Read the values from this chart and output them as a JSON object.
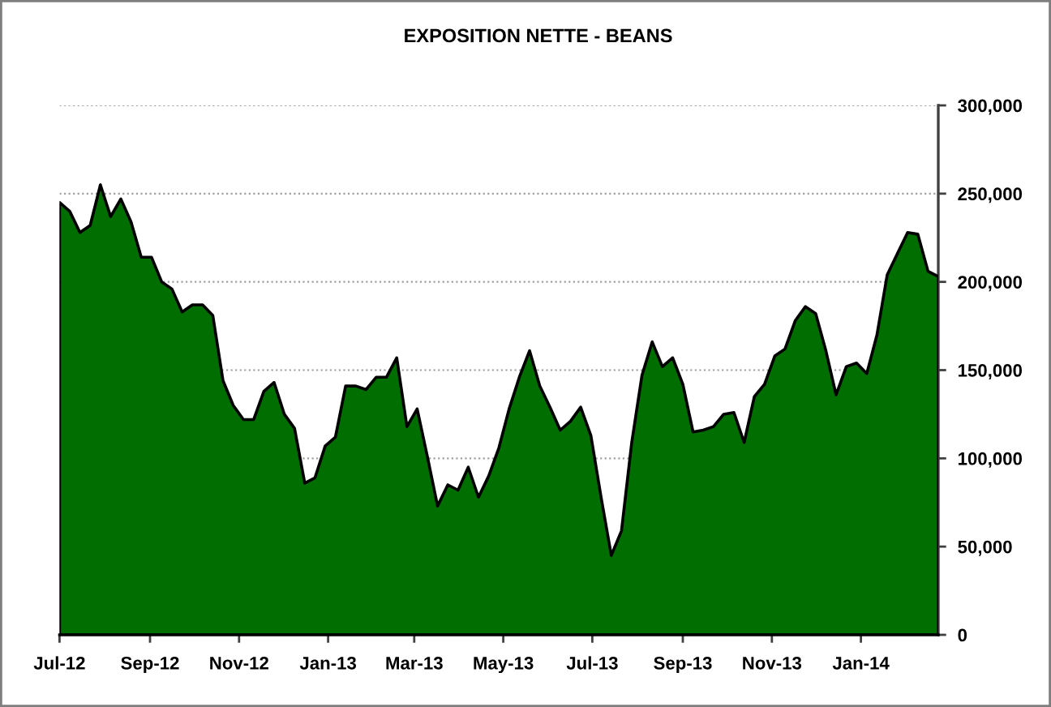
{
  "chart_data": {
    "type": "area",
    "title": "EXPOSITION NETTE - BEANS",
    "x": [
      "2012-07-03",
      "2012-07-10",
      "2012-07-17",
      "2012-07-24",
      "2012-07-31",
      "2012-08-07",
      "2012-08-14",
      "2012-08-21",
      "2012-08-28",
      "2012-09-04",
      "2012-09-11",
      "2012-09-18",
      "2012-09-25",
      "2012-10-02",
      "2012-10-09",
      "2012-10-16",
      "2012-10-23",
      "2012-10-30",
      "2012-11-06",
      "2012-11-13",
      "2012-11-20",
      "2012-11-27",
      "2012-12-04",
      "2012-12-11",
      "2012-12-18",
      "2012-12-25",
      "2013-01-01",
      "2013-01-08",
      "2013-01-15",
      "2013-01-22",
      "2013-01-29",
      "2013-02-05",
      "2013-02-12",
      "2013-02-19",
      "2013-02-26",
      "2013-03-05",
      "2013-03-12",
      "2013-03-19",
      "2013-03-26",
      "2013-04-02",
      "2013-04-09",
      "2013-04-16",
      "2013-04-23",
      "2013-04-30",
      "2013-05-07",
      "2013-05-14",
      "2013-05-21",
      "2013-05-28",
      "2013-06-04",
      "2013-06-11",
      "2013-06-18",
      "2013-06-25",
      "2013-07-02",
      "2013-07-09",
      "2013-07-16",
      "2013-07-23",
      "2013-07-30",
      "2013-08-06",
      "2013-08-13",
      "2013-08-20",
      "2013-08-27",
      "2013-09-03",
      "2013-09-10",
      "2013-09-17",
      "2013-09-24",
      "2013-10-01",
      "2013-10-08",
      "2013-10-15",
      "2013-10-22",
      "2013-10-29",
      "2013-11-05",
      "2013-11-12",
      "2013-11-19",
      "2013-11-26",
      "2013-12-03",
      "2013-12-10",
      "2013-12-17",
      "2013-12-24",
      "2013-12-31",
      "2014-01-07",
      "2014-01-14",
      "2014-01-21",
      "2014-01-28",
      "2014-02-04",
      "2014-02-11",
      "2014-02-18",
      "2014-02-25"
    ],
    "series": [
      {
        "color": "#006e00",
        "values": [
          245000,
          240000,
          228000,
          232000,
          255000,
          237000,
          247000,
          234000,
          214000,
          214000,
          200000,
          196000,
          183000,
          187000,
          187000,
          181000,
          144000,
          130000,
          122000,
          122000,
          138000,
          143000,
          125000,
          117000,
          86000,
          89000,
          107000,
          112000,
          141000,
          141000,
          139000,
          146000,
          146000,
          157000,
          118000,
          128000,
          101000,
          73000,
          85000,
          82000,
          95000,
          78000,
          90000,
          106000,
          128000,
          146000,
          161000,
          141000,
          129000,
          116000,
          121000,
          129000,
          113000,
          78000,
          45000,
          59000,
          109000,
          147000,
          166000,
          152000,
          157000,
          142000,
          115000,
          116000,
          118000,
          125000,
          126000,
          109000,
          135000,
          142000,
          158000,
          162000,
          178000,
          186000,
          182000,
          161000,
          136000,
          152000,
          154000,
          148000,
          170000,
          204000,
          216000,
          228000,
          227000,
          206000,
          203000
        ]
      }
    ],
    "xlim": [
      "2012-07-03",
      "2014-02-25"
    ],
    "xticks": [
      {
        "value": "2012-07-03",
        "label": "Jul-12"
      },
      {
        "value": "2012-09-03",
        "label": "Sep-12"
      },
      {
        "value": "2012-11-03",
        "label": "Nov-12"
      },
      {
        "value": "2013-01-03",
        "label": "Jan-13"
      },
      {
        "value": "2013-03-03",
        "label": "Mar-13"
      },
      {
        "value": "2013-05-03",
        "label": "May-13"
      },
      {
        "value": "2013-07-03",
        "label": "Jul-13"
      },
      {
        "value": "2013-09-03",
        "label": "Sep-13"
      },
      {
        "value": "2013-11-03",
        "label": "Nov-13"
      },
      {
        "value": "2014-01-03",
        "label": "Jan-14"
      }
    ],
    "ylim": [
      0,
      300000
    ],
    "yticks": [
      0,
      {
        "value": 50000,
        "label": "50,000"
      },
      {
        "value": 100000,
        "label": "100,000"
      },
      {
        "value": 150000,
        "label": "150,000"
      },
      {
        "value": 200000,
        "label": "200,000"
      },
      {
        "value": 250000,
        "label": "250,000"
      },
      {
        "value": 300000,
        "label": "300,000"
      }
    ],
    "grid": "y"
  }
}
